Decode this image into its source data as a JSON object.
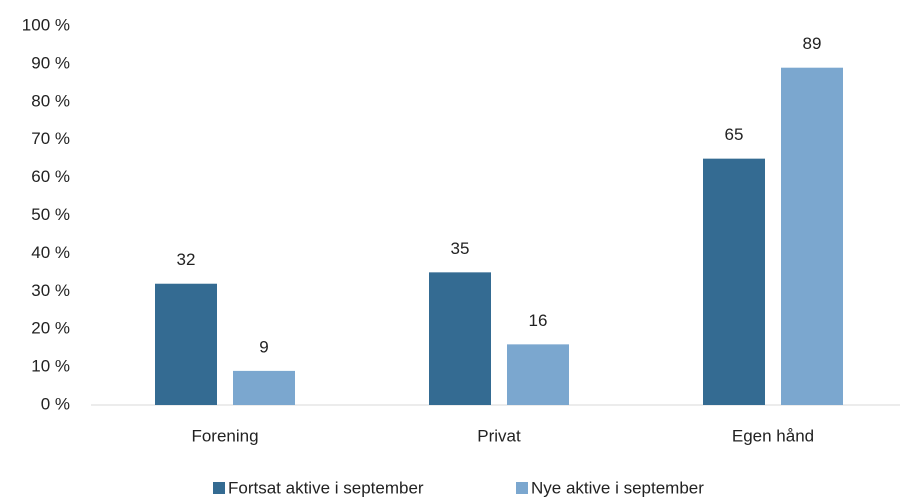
{
  "chart_data": {
    "type": "bar",
    "categories": [
      "Forening",
      "Privat",
      "Egen hånd"
    ],
    "series": [
      {
        "name": "Fortsat aktive i september",
        "color": "#346b92",
        "values": [
          32,
          35,
          65
        ]
      },
      {
        "name": "Nye aktive i september",
        "color": "#7ba7cf",
        "values": [
          9,
          16,
          89
        ]
      }
    ],
    "ylim": [
      0,
      100
    ],
    "yticks": [
      {
        "value": 0,
        "label": "0 %"
      },
      {
        "value": 10,
        "label": "10 %"
      },
      {
        "value": 20,
        "label": "20 %"
      },
      {
        "value": 30,
        "label": "30 %"
      },
      {
        "value": 40,
        "label": "40 %"
      },
      {
        "value": 50,
        "label": "50 %"
      },
      {
        "value": 60,
        "label": "60 %"
      },
      {
        "value": 70,
        "label": "70 %"
      },
      {
        "value": 80,
        "label": "80 %"
      },
      {
        "value": 90,
        "label": "90 %"
      },
      {
        "value": 100,
        "label": "100 %"
      }
    ],
    "grid": false,
    "legend": "bottom"
  }
}
